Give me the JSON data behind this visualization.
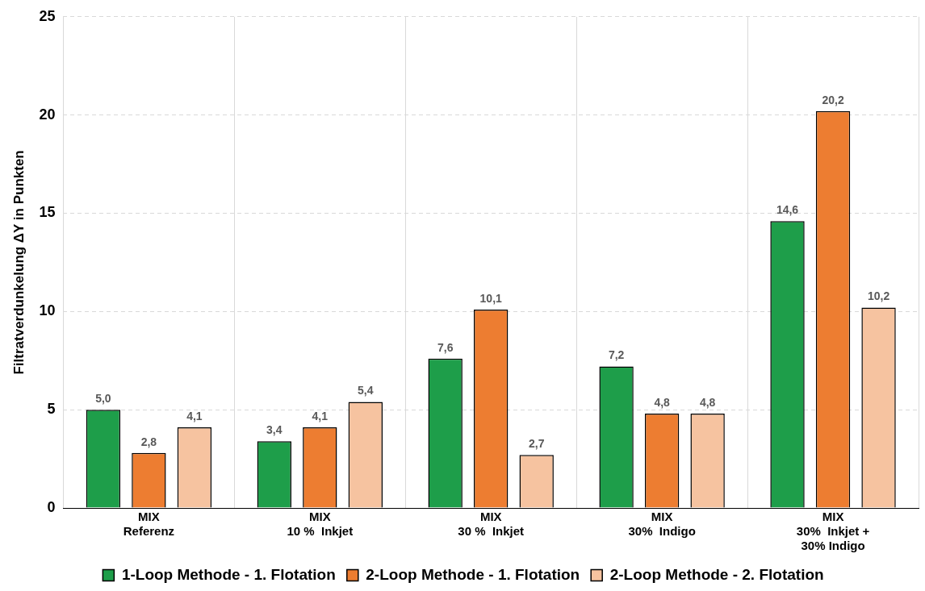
{
  "chart_data": {
    "type": "bar",
    "ylabel": "Filtratverdunkelung ΔY in Punkten",
    "categories": [
      "MIX\nReferenz",
      "MIX\n10 %  Inkjet",
      "MIX\n30 %  Inkjet",
      "MIX\n30%  Indigo",
      "MIX\n30%  Inkjet +\n30% Indigo"
    ],
    "series": [
      {
        "name": "1-Loop Methode - 1. Flotation",
        "color": "#1e9e4a",
        "values": [
          5.0,
          3.4,
          7.6,
          7.2,
          14.6
        ],
        "value_labels": [
          "5,0",
          "3,4",
          "7,6",
          "7,2",
          "14,6"
        ]
      },
      {
        "name": "2-Loop Methode - 1. Flotation",
        "color": "#ed7d31",
        "values": [
          2.8,
          4.1,
          10.1,
          4.8,
          20.2
        ],
        "value_labels": [
          "2,8",
          "4,1",
          "10,1",
          "4,8",
          "20,2"
        ]
      },
      {
        "name": "2-Loop Methode - 2. Flotation",
        "color": "#f6c3a0",
        "values": [
          4.1,
          5.4,
          2.7,
          4.8,
          10.2
        ],
        "value_labels": [
          "4,1",
          "5,4",
          "2,7",
          "4,8",
          "10,2"
        ]
      }
    ],
    "ylim": [
      0,
      25
    ],
    "yticks": [
      0,
      5,
      10,
      15,
      20,
      25
    ],
    "grid": true,
    "legend": "bottom"
  }
}
